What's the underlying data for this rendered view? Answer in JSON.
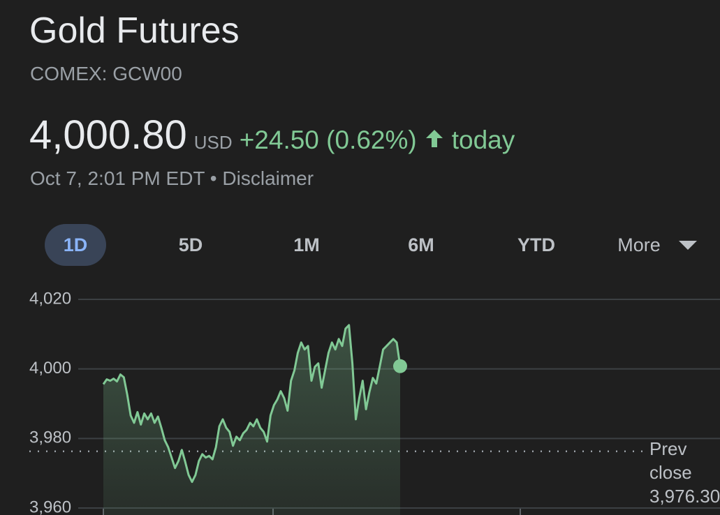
{
  "header": {
    "title": "Gold Futures",
    "subtitle": "COMEX: GCW00",
    "price": "4,000.80",
    "currency": "USD",
    "change": "+24.50 (0.62%)",
    "period": "today",
    "timestamp": "Oct 7, 2:01 PM EDT",
    "disclaimer": "Disclaimer"
  },
  "tabs": [
    "1D",
    "5D",
    "1M",
    "6M",
    "YTD",
    "More"
  ],
  "chart_data": {
    "type": "line",
    "ylim": [
      3960,
      4020
    ],
    "yticks": [
      {
        "value": 4020,
        "label": "4,020"
      },
      {
        "value": 4000,
        "label": "4,000"
      },
      {
        "value": 3980,
        "label": "3,980"
      },
      {
        "value": 3960,
        "label": "3,960"
      }
    ],
    "grid": true,
    "series": [
      {
        "name": "Gold Futures",
        "color": "#81c995",
        "values": [
          3995.6,
          3997,
          3996.6,
          3997.2,
          3996.4,
          3998.4,
          3997.6,
          3992.6,
          3986.6,
          3984.5,
          3987.6,
          3984,
          3987.2,
          3985.5,
          3987.2,
          3984.5,
          3986.3,
          3983.1,
          3979.5,
          3977.5,
          3974.5,
          3971.5,
          3973.5,
          3976.7,
          3973.3,
          3969.5,
          3967.5,
          3969.5,
          3973.5,
          3975.5,
          3974.5,
          3975,
          3974,
          3977.5,
          3983.5,
          3985.5,
          3983.1,
          3981.9,
          3977.9,
          3980.5,
          3979.5,
          3981.5,
          3982.5,
          3984.5,
          3983.5,
          3985.5,
          3983.1,
          3981.9,
          3979.1,
          3986.6,
          3989.6,
          3991.2,
          3993.6,
          3991.6,
          3988,
          3996.6,
          3999.6,
          4004.6,
          4007.6,
          4005.6,
          4006.6,
          3996.6,
          4000.6,
          4001.6,
          3994.6,
          3999.6,
          4004.6,
          4007.6,
          4005.6,
          4008.6,
          4006.6,
          4011.6,
          4012.6,
          4001.6,
          3985.5,
          3991.6,
          3996.6,
          3988.4,
          3993.4,
          3997.4,
          3995.8,
          4000.6,
          4005.6,
          4006.6,
          4007.6,
          4008.6,
          4007.6,
          4000.8
        ]
      }
    ],
    "prev_close": {
      "label": "Prev close",
      "value": 3976.3,
      "value_label": "3,976.30"
    }
  }
}
